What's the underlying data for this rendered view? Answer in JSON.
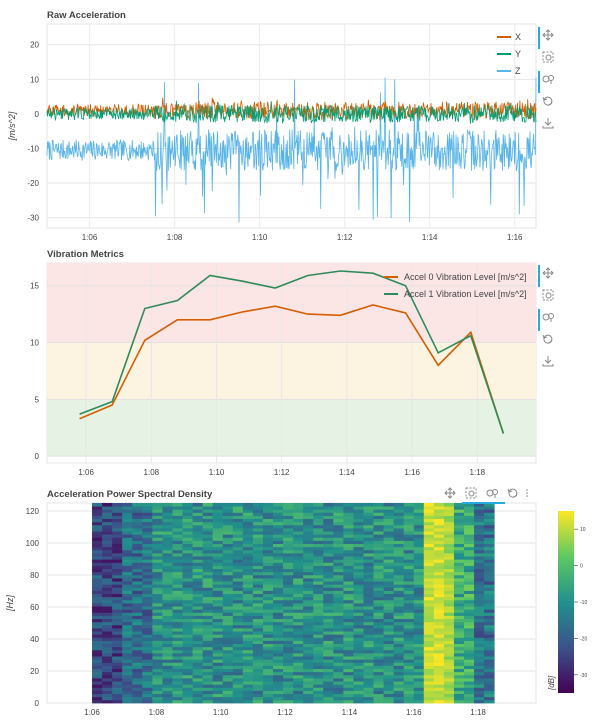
{
  "colors": {
    "x": "#d55e00",
    "y": "#009e73",
    "z": "#56b4e9",
    "accel0": "#d55e00",
    "accel1": "#2e8b57"
  },
  "toolbar": {
    "icons": [
      "pan-icon",
      "box-zoom-icon",
      "wheel-zoom-icon",
      "reset-icon",
      "save-icon"
    ]
  },
  "chart_data": [
    {
      "type": "line",
      "title": "Raw Acceleration",
      "ylabel": "[m/s^2]",
      "xlabel": "",
      "xlim": [
        65,
        76.5
      ],
      "ylim": [
        -33,
        26
      ],
      "x_ticks": [
        "1:06",
        "1:08",
        "1:10",
        "1:12",
        "1:14",
        "1:16"
      ],
      "x_tick_values": [
        66,
        68,
        70,
        72,
        74,
        76
      ],
      "y_ticks": [
        20,
        10,
        0,
        -10,
        -20,
        -30
      ],
      "series": [
        {
          "name": "X",
          "description": "noise around ~1; amplitude ~2 before 1:07.5, ~3 after"
        },
        {
          "name": "Y",
          "description": "noise around ~0; amplitude ~2 before 1:07.5, ~3 after"
        },
        {
          "name": "Z",
          "description": "noise around ~-10.5; amplitude ~3 before 1:07.5, spikes to +12 / -33 after"
        }
      ],
      "legend": [
        "X",
        "Y",
        "Z"
      ],
      "legend_position": "top-right"
    },
    {
      "type": "line",
      "title": "Vibration Metrics",
      "ylabel": "",
      "xlim": [
        64.8,
        79.8
      ],
      "ylim": [
        -0.6,
        17
      ],
      "x_ticks": [
        "1:06",
        "1:08",
        "1:10",
        "1:12",
        "1:14",
        "1:16",
        "1:18"
      ],
      "x_tick_values": [
        66,
        68,
        70,
        72,
        74,
        76,
        78
      ],
      "y_ticks": [
        0,
        5,
        10,
        15
      ],
      "bands": [
        {
          "from": 0,
          "to": 5,
          "color": "#e6f2e3"
        },
        {
          "from": 5,
          "to": 10,
          "color": "#fcf3e1"
        },
        {
          "from": 10,
          "to": 17,
          "color": "#fbe5e5"
        }
      ],
      "x": [
        65.8,
        66.8,
        67.8,
        68.8,
        69.8,
        70.8,
        71.8,
        72.8,
        73.8,
        74.8,
        75.8,
        76.8,
        77.8,
        78.8
      ],
      "series": [
        {
          "name": "Accel 0 Vibration Level [m/s^2]",
          "values": [
            3.3,
            4.5,
            10.2,
            12.0,
            12.0,
            12.7,
            13.2,
            12.5,
            12.4,
            13.3,
            12.6,
            8.0,
            10.9,
            2.0
          ]
        },
        {
          "name": "Accel 1 Vibration Level [m/s^2]",
          "values": [
            3.7,
            4.8,
            13.0,
            13.7,
            15.9,
            15.4,
            14.8,
            15.9,
            16.3,
            16.1,
            15.0,
            9.1,
            10.6,
            2.0
          ]
        }
      ],
      "legend_position": "top-right"
    },
    {
      "type": "heatmap",
      "title": "Acceleration Power Spectral Density",
      "ylabel": "[Hz]",
      "xlim": [
        64.6,
        79.8
      ],
      "ylim": [
        0,
        125
      ],
      "x_ticks": [
        "1:06",
        "1:08",
        "1:10",
        "1:12",
        "1:14",
        "1:16",
        "1:18"
      ],
      "x_tick_values": [
        66,
        68,
        70,
        72,
        74,
        76,
        78
      ],
      "y_ticks": [
        0,
        20,
        40,
        60,
        80,
        100,
        120
      ],
      "data_x_range": [
        66,
        78.5
      ],
      "colorbar": {
        "label": "[dB]",
        "ticks": [
          10,
          0,
          -10,
          -20,
          -30
        ],
        "range": [
          -35,
          15
        ]
      },
      "description": "low values (dark) before 1:08, mid-green 1:08–1:16.5, bright yellow band 1:16.5–1:17.5"
    }
  ]
}
